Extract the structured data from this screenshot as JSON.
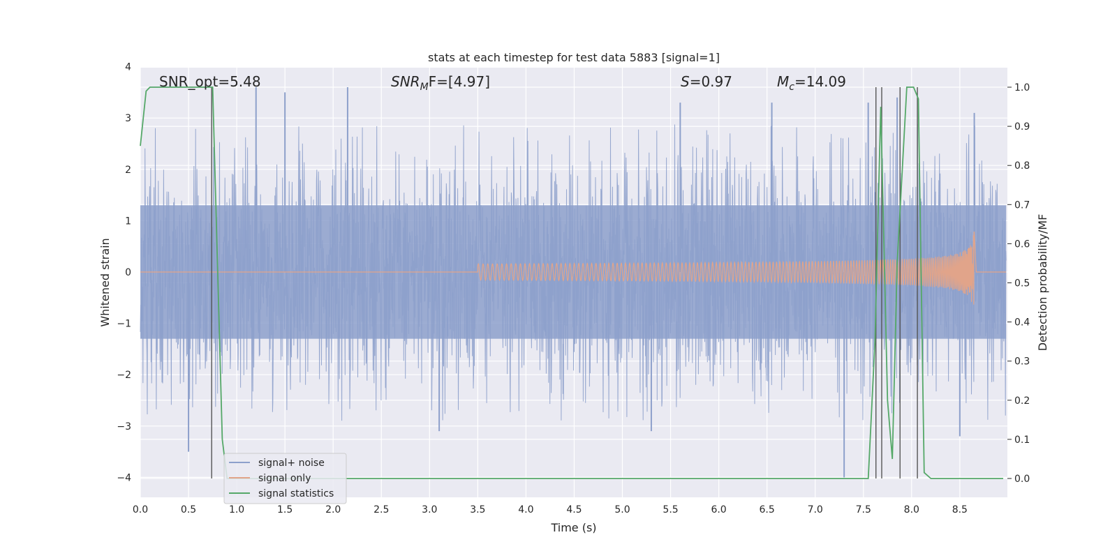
{
  "chart_data": {
    "type": "line",
    "title": "stats at each timestep for test data 5883 [signal=1]",
    "xlabel": "Time (s)",
    "ylabel": "Whitened strain",
    "ylabel_right": "Detection probability/MF",
    "xlim": [
      0,
      9.0
    ],
    "ylim": [
      -4.37,
      4.0
    ],
    "ylim_right": [
      -0.05,
      1.05
    ],
    "x_ticks": [
      "0.0",
      "0.5",
      "1.0",
      "1.5",
      "2.0",
      "2.5",
      "3.0",
      "3.5",
      "4.0",
      "4.5",
      "5.0",
      "5.5",
      "6.0",
      "6.5",
      "7.0",
      "7.5",
      "8.0",
      "8.5"
    ],
    "y_ticks": [
      "4",
      "3",
      "2",
      "1",
      "0",
      "−1",
      "−2",
      "−3",
      "−4"
    ],
    "y_ticks_right": [
      "1.0",
      "0.9",
      "0.8",
      "0.7",
      "0.6",
      "0.5",
      "0.4",
      "0.3",
      "0.2",
      "0.1",
      "0.0"
    ],
    "grid": true,
    "legend_position": "lower-left",
    "annotations": {
      "snr_opt": "SNR_opt=5.48",
      "snr_mf_base": "SNR",
      "snr_mf_sub": "M",
      "snr_mf_rest": "F=[4.97]",
      "s_label": "S",
      "s_value": "=0.97",
      "mc_base": "M",
      "mc_sub": "c",
      "mc_value": "=14.09"
    },
    "series": [
      {
        "name": "signal+ noise",
        "color": "#8da0cb",
        "description": "dense whitened noise with signal, amplitude envelope approx ±1.3 with spikes to ±3.6",
        "envelope": 1.3,
        "spikes": [
          {
            "x": 0.5,
            "y": -3.5
          },
          {
            "x": 1.2,
            "y": 3.6
          },
          {
            "x": 1.5,
            "y": 3.5
          },
          {
            "x": 2.15,
            "y": 3.6
          },
          {
            "x": 3.1,
            "y": -3.1
          },
          {
            "x": 5.3,
            "y": -3.1
          },
          {
            "x": 5.6,
            "y": 3.3
          },
          {
            "x": 6.55,
            "y": 3.3
          },
          {
            "x": 7.3,
            "y": -4.0
          },
          {
            "x": 7.55,
            "y": 3.3
          },
          {
            "x": 7.85,
            "y": 3.4
          },
          {
            "x": 8.5,
            "y": -3.2
          },
          {
            "x": 8.65,
            "y": 3.1
          }
        ]
      },
      {
        "name": "signal only",
        "color": "#e1a48a",
        "description": "chirp signal growing from ~0 to peak amplitude 0.95 at t=8.65 s",
        "chirp_start": 3.5,
        "chirp_peak_time": 8.65,
        "chirp_peak_amplitude": 0.95
      },
      {
        "name": "signal statistics",
        "color": "#55a868",
        "axis": "right",
        "x": [
          0.0,
          0.06,
          0.1,
          0.2,
          0.5,
          0.73,
          0.75,
          0.85,
          0.9,
          1.0,
          3.0,
          5.0,
          7.0,
          7.55,
          7.62,
          7.68,
          7.75,
          7.8,
          7.85,
          7.95,
          8.02,
          8.07,
          8.13,
          8.2,
          8.5,
          8.95
        ],
        "y": [
          0.85,
          0.99,
          1.0,
          1.0,
          1.0,
          1.0,
          1.0,
          0.1,
          0.0,
          0.0,
          0.0,
          0.0,
          0.0,
          0.0,
          0.35,
          0.95,
          0.2,
          0.05,
          0.55,
          1.0,
          1.0,
          0.97,
          0.015,
          0.0,
          0.0,
          0.0
        ]
      }
    ],
    "vertical_markers_x": [
      0.74,
      7.63,
      7.69,
      7.88,
      8.06
    ]
  }
}
